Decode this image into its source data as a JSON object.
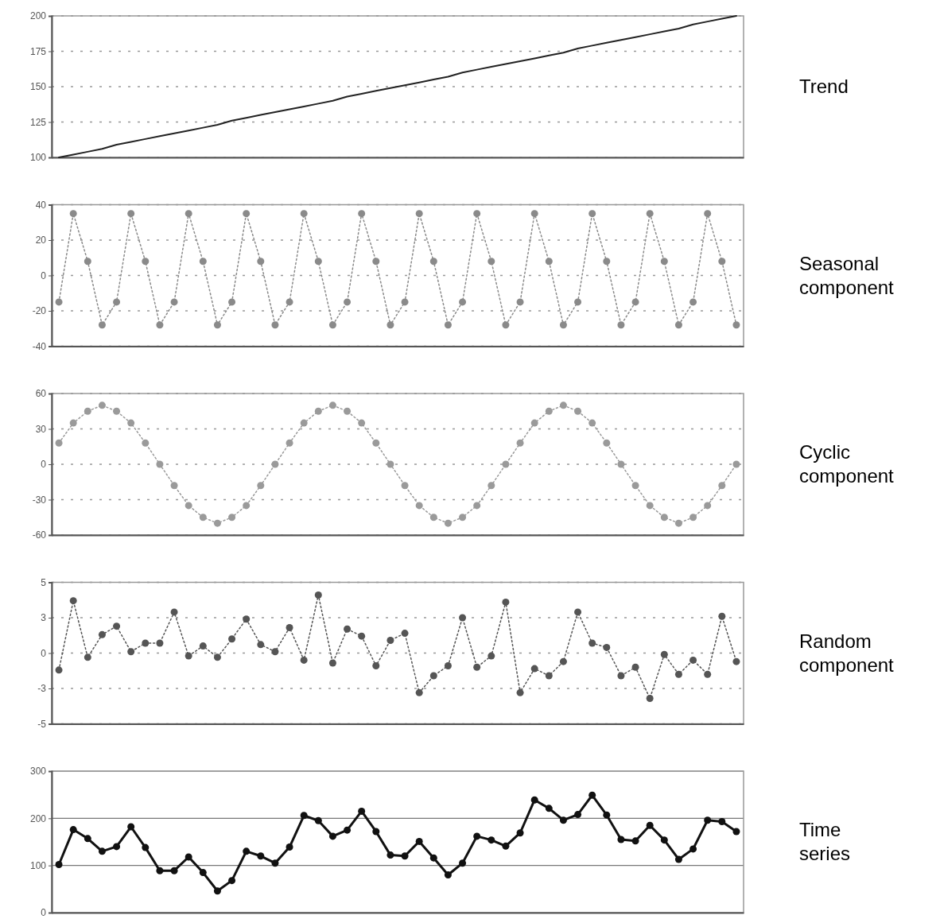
{
  "chart_data": [
    {
      "type": "line",
      "ylabel": "Trend",
      "categories": [
        null,
        null,
        null,
        null,
        null,
        null,
        null,
        null,
        null,
        null,
        null,
        null,
        null,
        null,
        null,
        null,
        null,
        null,
        null,
        null,
        null,
        null,
        null,
        null,
        null,
        null,
        null,
        null,
        null,
        null,
        null,
        null,
        null,
        null,
        null,
        null,
        null,
        null,
        null,
        null,
        null,
        null,
        null,
        null,
        null,
        null,
        null,
        null
      ],
      "series": [
        {
          "color": "#222222",
          "line_style": "solid",
          "marker": "none",
          "values": [
            100,
            102,
            104,
            106,
            109,
            111,
            113,
            115,
            117,
            119,
            121,
            123,
            126,
            128,
            130,
            132,
            134,
            136,
            138,
            140,
            143,
            145,
            147,
            149,
            151,
            153,
            155,
            157,
            160,
            162,
            164,
            166,
            168,
            170,
            172,
            174,
            177,
            179,
            181,
            183,
            185,
            187,
            189,
            191,
            194,
            196,
            198,
            200
          ]
        }
      ],
      "ylim": [
        100,
        200
      ],
      "yticks": [
        100,
        125,
        150,
        175,
        200
      ],
      "grid": "y",
      "tick_labels": "y"
    },
    {
      "type": "line",
      "ylabel": "Seasonal component",
      "categories": [
        null,
        null,
        null,
        null,
        null,
        null,
        null,
        null,
        null,
        null,
        null,
        null,
        null,
        null,
        null,
        null,
        null,
        null,
        null,
        null,
        null,
        null,
        null,
        null,
        null,
        null,
        null,
        null,
        null,
        null,
        null,
        null,
        null,
        null,
        null,
        null,
        null,
        null,
        null,
        null,
        null,
        null,
        null,
        null,
        null,
        null,
        null,
        null
      ],
      "series": [
        {
          "color": "#8a8a8a",
          "line_style": "dotted",
          "marker": "circle",
          "values": [
            -15,
            35,
            8,
            -28,
            -15,
            35,
            8,
            -28,
            -15,
            35,
            8,
            -28,
            -15,
            35,
            8,
            -28,
            -15,
            35,
            8,
            -28,
            -15,
            35,
            8,
            -28,
            -15,
            35,
            8,
            -28,
            -15,
            35,
            8,
            -28,
            -15,
            35,
            8,
            -28,
            -15,
            35,
            8,
            -28,
            -15,
            35,
            8,
            -28,
            -15,
            35,
            8,
            -28
          ]
        }
      ],
      "ylim": [
        -40,
        40
      ],
      "yticks": [
        -40,
        -20,
        0,
        20,
        40
      ],
      "grid": "y",
      "tick_labels": "y"
    },
    {
      "type": "line",
      "ylabel": "Cyclic component",
      "categories": [
        null,
        null,
        null,
        null,
        null,
        null,
        null,
        null,
        null,
        null,
        null,
        null,
        null,
        null,
        null,
        null,
        null,
        null,
        null,
        null,
        null,
        null,
        null,
        null,
        null,
        null,
        null,
        null,
        null,
        null,
        null,
        null,
        null,
        null,
        null,
        null,
        null,
        null,
        null,
        null,
        null,
        null,
        null,
        null,
        null,
        null,
        null,
        null
      ],
      "series": [
        {
          "color": "#9a9a9a",
          "line_style": "dotted",
          "marker": "circle",
          "values": [
            18,
            35,
            45,
            50,
            45,
            35,
            18,
            0,
            -18,
            -35,
            -45,
            -50,
            -45,
            -35,
            -18,
            0,
            18,
            35,
            45,
            50,
            45,
            35,
            18,
            0,
            -18,
            -35,
            -45,
            -50,
            -45,
            -35,
            -18,
            0,
            18,
            35,
            45,
            50,
            45,
            35,
            18,
            0,
            -18,
            -35,
            -45,
            -50,
            -45,
            -35,
            -18,
            0
          ]
        }
      ],
      "ylim": [
        -60,
        60
      ],
      "yticks": [
        -60,
        -30,
        0,
        30,
        60
      ],
      "grid": "y",
      "tick_labels": "y"
    },
    {
      "type": "line",
      "ylabel": "Random component",
      "categories": [
        null,
        null,
        null,
        null,
        null,
        null,
        null,
        null,
        null,
        null,
        null,
        null,
        null,
        null,
        null,
        null,
        null,
        null,
        null,
        null,
        null,
        null,
        null,
        null,
        null,
        null,
        null,
        null,
        null,
        null,
        null,
        null,
        null,
        null,
        null,
        null,
        null,
        null,
        null,
        null,
        null,
        null,
        null,
        null,
        null,
        null,
        null,
        null
      ],
      "series": [
        {
          "color": "#555555",
          "line_style": "dotted",
          "marker": "circle",
          "values": [
            -1.2,
            3.7,
            -0.3,
            1.3,
            1.9,
            0.1,
            0.7,
            0.7,
            2.9,
            -0.2,
            0.5,
            -0.3,
            1.0,
            2.4,
            0.6,
            0.1,
            1.8,
            -0.5,
            4.1,
            -0.7,
            1.7,
            1.2,
            -0.9,
            0.9,
            1.4,
            -2.8,
            -1.6,
            -0.9,
            2.5,
            -1.0,
            -0.2,
            3.6,
            -2.8,
            -1.1,
            -1.6,
            -0.6,
            2.9,
            0.7,
            0.4,
            -1.6,
            -1.0,
            -3.2,
            -0.1,
            -1.5,
            -0.5,
            -1.5,
            2.6,
            -0.6
          ]
        }
      ],
      "ylim": [
        -5,
        5
      ],
      "yticks": [
        -5,
        {
          "value": -2.5,
          "label": "-3"
        },
        0,
        {
          "value": 2.5,
          "label": "3"
        },
        5
      ],
      "grid": "y",
      "tick_labels": "y"
    },
    {
      "type": "line",
      "ylabel": "Time series",
      "categories": [
        null,
        null,
        null,
        null,
        null,
        null,
        null,
        null,
        null,
        null,
        null,
        null,
        null,
        null,
        null,
        null,
        null,
        null,
        null,
        null,
        null,
        null,
        null,
        null,
        null,
        null,
        null,
        null,
        null,
        null,
        null,
        null,
        null,
        null,
        null,
        null,
        null,
        null,
        null,
        null,
        null,
        null,
        null,
        null,
        null,
        null,
        null,
        null
      ],
      "series": [
        {
          "color": "#111111",
          "line_style": "solid",
          "marker": "circle",
          "values": [
            102,
            176,
            157,
            130,
            140,
            182,
            138,
            89,
            89,
            118,
            85,
            46,
            68,
            130,
            120,
            105,
            139,
            206,
            195,
            162,
            175,
            215,
            172,
            122,
            120,
            151,
            116,
            80,
            105,
            162,
            154,
            141,
            169,
            239,
            221,
            196,
            208,
            249,
            207,
            155,
            152,
            185,
            154,
            113,
            135,
            196,
            193,
            172
          ]
        }
      ],
      "ylim": [
        0,
        300
      ],
      "yticks": [
        0,
        100,
        200,
        300
      ],
      "grid": "y",
      "tick_labels": "y"
    }
  ]
}
